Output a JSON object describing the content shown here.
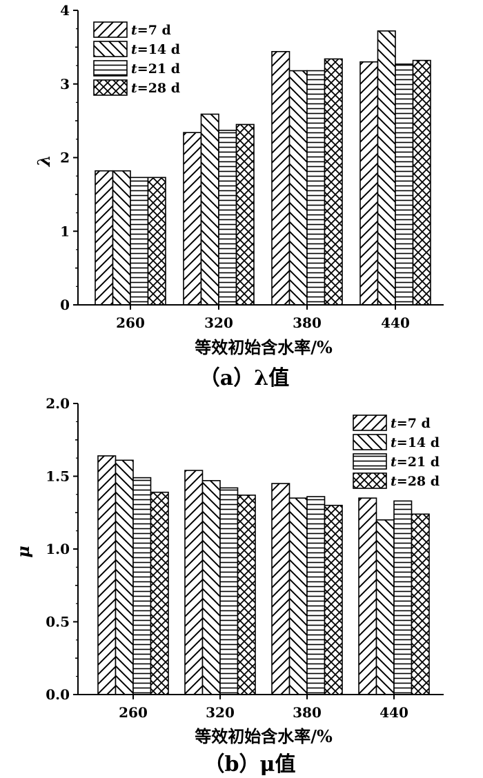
{
  "figure": {
    "captions": [
      "（a）λ值",
      "（b）μ值"
    ]
  },
  "legend_entries": [
    {
      "var": "t",
      "rest": "=7 d"
    },
    {
      "var": "t",
      "rest": "=14 d"
    },
    {
      "var": "t",
      "rest": "=21 d"
    },
    {
      "var": "t",
      "rest": "=28 d"
    }
  ],
  "chart_data": [
    {
      "type": "bar",
      "categories": [
        "260",
        "320",
        "380",
        "440"
      ],
      "series": [
        {
          "name": "t=7 d",
          "pattern": "diag-up",
          "values": [
            1.82,
            2.34,
            3.44,
            3.3
          ]
        },
        {
          "name": "t=14 d",
          "pattern": "diag-down",
          "values": [
            1.82,
            2.59,
            3.18,
            3.72
          ]
        },
        {
          "name": "t=21 d",
          "pattern": "horizontal",
          "values": [
            1.73,
            2.37,
            3.18,
            3.27
          ]
        },
        {
          "name": "t=28 d",
          "pattern": "crosshatch",
          "values": [
            1.73,
            2.45,
            3.34,
            3.32
          ]
        }
      ],
      "xlabel": "等效初始含水率/%",
      "ylabel": "λ",
      "ylim": [
        0,
        4
      ],
      "yticks": [
        "0",
        "1",
        "2",
        "3",
        "4"
      ],
      "legend_position": "top-left",
      "grid": false,
      "caption": "（a）λ值"
    },
    {
      "type": "bar",
      "categories": [
        "260",
        "320",
        "380",
        "440"
      ],
      "series": [
        {
          "name": "t=7 d",
          "pattern": "diag-up",
          "values": [
            1.64,
            1.54,
            1.45,
            1.35
          ]
        },
        {
          "name": "t=14 d",
          "pattern": "diag-down",
          "values": [
            1.61,
            1.47,
            1.35,
            1.2
          ]
        },
        {
          "name": "t=21 d",
          "pattern": "horizontal",
          "values": [
            1.49,
            1.42,
            1.36,
            1.33
          ]
        },
        {
          "name": "t=28 d",
          "pattern": "crosshatch",
          "values": [
            1.39,
            1.37,
            1.3,
            1.24
          ]
        }
      ],
      "xlabel": "等效初始含水率/%",
      "ylabel": "μ",
      "ylim": [
        0,
        2.0
      ],
      "yticks": [
        "0.0",
        "0.5",
        "1.0",
        "1.5",
        "2.0"
      ],
      "legend_position": "top-right",
      "grid": false,
      "caption": "（b）μ值"
    }
  ]
}
